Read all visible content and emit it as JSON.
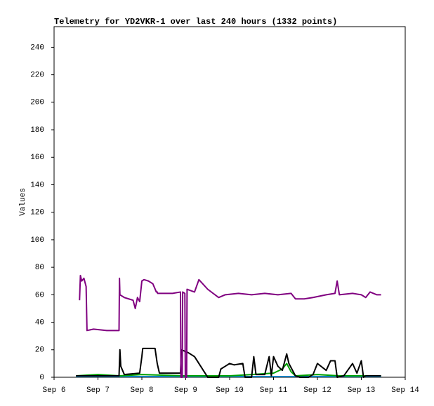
{
  "chart_data": {
    "type": "line",
    "title": "Telemetry for YD2VKR-1 over last 240 hours (1332 points)",
    "y_label": "Values",
    "xlim": [
      6,
      14
    ],
    "xticks": [
      {
        "value": 6,
        "label": "Sep 6"
      },
      {
        "value": 7,
        "label": "Sep 7"
      },
      {
        "value": 8,
        "label": "Sep 8"
      },
      {
        "value": 9,
        "label": "Sep 9"
      },
      {
        "value": 10,
        "label": "Sep 10"
      },
      {
        "value": 11,
        "label": "Sep 11"
      },
      {
        "value": 12,
        "label": "Sep 12"
      },
      {
        "value": 13,
        "label": "Sep 13"
      },
      {
        "value": 14,
        "label": "Sep 14"
      }
    ],
    "ylim": [
      0,
      255
    ],
    "yticks": [
      0,
      20,
      40,
      60,
      80,
      100,
      120,
      140,
      160,
      180,
      200,
      220,
      240
    ],
    "grid": false,
    "series": [
      {
        "color": "#0080c0",
        "x": [
          6.5,
          13.45
        ],
        "values": [
          0.5,
          0.5
        ]
      },
      {
        "color": "#00a000",
        "x": [
          6.5,
          7.0,
          7.5,
          8.0,
          9.0,
          10.0,
          10.5,
          11.0,
          11.2,
          11.3,
          11.4,
          11.5,
          12.0,
          12.5,
          13.0,
          13.45
        ],
        "values": [
          1,
          2,
          1,
          2,
          1,
          1,
          2,
          3,
          6,
          10,
          4,
          1,
          2,
          1,
          1,
          1
        ]
      },
      {
        "color": "#000000",
        "x": [
          6.5,
          7.48,
          7.5,
          7.52,
          7.6,
          7.95,
          8.0,
          8.02,
          8.3,
          8.35,
          8.4,
          8.88,
          8.9,
          9.05,
          9.2,
          9.4,
          9.5,
          9.75,
          9.8,
          9.9,
          10.0,
          10.1,
          10.3,
          10.35,
          10.5,
          10.55,
          10.6,
          10.8,
          10.9,
          10.95,
          11.0,
          11.1,
          11.2,
          11.3,
          11.35,
          11.5,
          11.6,
          11.8,
          11.9,
          12.0,
          12.2,
          12.3,
          12.4,
          12.45,
          12.6,
          12.8,
          12.9,
          13.0,
          13.05,
          13.1,
          13.45
        ],
        "values": [
          1,
          1,
          20,
          8,
          2,
          3,
          15,
          21,
          21,
          10,
          3,
          3,
          20,
          18,
          15,
          5,
          0,
          0,
          6,
          8,
          10,
          9,
          10,
          0,
          0,
          15,
          2,
          2,
          15,
          1,
          15,
          8,
          5,
          17,
          10,
          1,
          0,
          0,
          2,
          10,
          5,
          12,
          12,
          0,
          1,
          10,
          3,
          12,
          0,
          1,
          1
        ]
      },
      {
        "color": "#800080",
        "x": [
          6.58,
          6.6,
          6.63,
          6.68,
          6.73,
          6.75,
          6.9,
          7.2,
          7.48,
          7.49,
          7.5,
          7.6,
          7.7,
          7.8,
          7.85,
          7.9,
          7.95,
          8.0,
          8.05,
          8.15,
          8.25,
          8.33,
          8.35,
          8.36,
          8.5,
          8.7,
          8.88,
          8.89,
          8.92,
          8.93,
          8.98,
          8.99,
          9.02,
          9.03,
          9.2,
          9.3,
          9.5,
          9.75,
          9.9,
          10.2,
          10.5,
          10.8,
          11.1,
          11.4,
          11.5,
          11.7,
          11.9,
          12.2,
          12.4,
          12.45,
          12.5,
          12.8,
          13.0,
          13.1,
          13.2,
          13.35,
          13.45
        ],
        "values": [
          56,
          74,
          70,
          72,
          66,
          34,
          35,
          34,
          34,
          72,
          60,
          58,
          57,
          56,
          50,
          58,
          55,
          70,
          71,
          70,
          68,
          62,
          62,
          61,
          61,
          61,
          62,
          0,
          0,
          62,
          61,
          0,
          0,
          64,
          62,
          71,
          64,
          58,
          60,
          61,
          60,
          61,
          60,
          61,
          57,
          57,
          58,
          60,
          61,
          70,
          60,
          61,
          60,
          58,
          62,
          60,
          60
        ]
      }
    ]
  }
}
